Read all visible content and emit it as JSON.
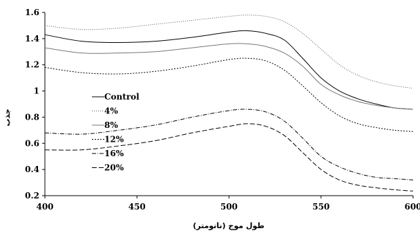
{
  "chart_data": {
    "type": "line",
    "title": "",
    "xlabel": "طول موج (نانومتر)",
    "ylabel": "جذب",
    "xlim": [
      400,
      600
    ],
    "ylim": [
      0.2,
      1.6
    ],
    "x_ticks": [
      400,
      450,
      500,
      550,
      600
    ],
    "y_ticks": [
      0.2,
      0.4,
      0.6,
      0.8,
      1,
      1.2,
      1.4,
      1.6
    ],
    "x_tick_labels": [
      "400",
      "450",
      "500",
      "550",
      "600"
    ],
    "y_tick_labels": [
      "0.2",
      "0.4",
      "0.6",
      "0.8",
      "1",
      "1.2",
      "1.4",
      "1.6"
    ],
    "grid": false,
    "legend_position": "left-center",
    "x": [
      400,
      420,
      440,
      460,
      480,
      500,
      510,
      520,
      530,
      540,
      550,
      560,
      570,
      580,
      590,
      600
    ],
    "series": [
      {
        "name": "Control",
        "values": [
          1.43,
          1.38,
          1.37,
          1.38,
          1.41,
          1.45,
          1.46,
          1.44,
          1.39,
          1.25,
          1.1,
          1.0,
          0.94,
          0.9,
          0.87,
          0.86
        ]
      },
      {
        "name": "4%",
        "values": [
          1.5,
          1.47,
          1.48,
          1.51,
          1.54,
          1.57,
          1.58,
          1.57,
          1.53,
          1.44,
          1.32,
          1.2,
          1.12,
          1.07,
          1.04,
          1.02
        ]
      },
      {
        "name": "8%",
        "values": [
          1.33,
          1.29,
          1.29,
          1.3,
          1.33,
          1.36,
          1.36,
          1.34,
          1.29,
          1.19,
          1.05,
          0.97,
          0.92,
          0.89,
          0.87,
          0.86
        ]
      },
      {
        "name": "12%",
        "values": [
          1.18,
          1.14,
          1.13,
          1.15,
          1.19,
          1.24,
          1.25,
          1.23,
          1.16,
          1.04,
          0.91,
          0.81,
          0.75,
          0.72,
          0.7,
          0.69
        ]
      },
      {
        "name": "16%",
        "values": [
          0.68,
          0.67,
          0.7,
          0.74,
          0.8,
          0.85,
          0.86,
          0.84,
          0.77,
          0.64,
          0.5,
          0.42,
          0.37,
          0.34,
          0.33,
          0.32
        ]
      },
      {
        "name": "20%",
        "values": [
          0.55,
          0.55,
          0.58,
          0.62,
          0.68,
          0.73,
          0.75,
          0.73,
          0.66,
          0.53,
          0.4,
          0.32,
          0.28,
          0.26,
          0.245,
          0.235
        ]
      }
    ],
    "series_styles": [
      {
        "color": "#000000",
        "dash": ""
      },
      {
        "color": "#555555",
        "dash": "1,2"
      },
      {
        "color": "#777777",
        "dash": ""
      },
      {
        "color": "#000000",
        "dash": "2,2"
      },
      {
        "color": "#000000",
        "dash": "6,2,1,2"
      },
      {
        "color": "#000000",
        "dash": "7,3"
      }
    ]
  }
}
